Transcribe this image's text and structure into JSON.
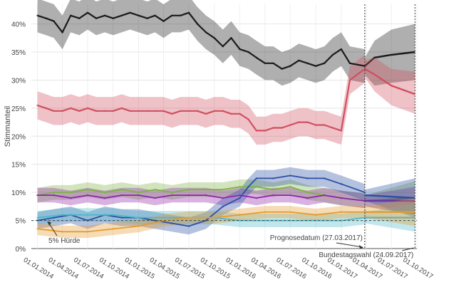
{
  "chart_data": {
    "type": "line",
    "ylabel": "Stimmanteil",
    "xlabel": "",
    "title": "",
    "y_ticks": [
      {
        "value": 0,
        "label": "0%"
      },
      {
        "value": 5,
        "label": "5%"
      },
      {
        "value": 10,
        "label": "10%"
      },
      {
        "value": 15,
        "label": "15%"
      },
      {
        "value": 20,
        "label": "20%"
      },
      {
        "value": 25,
        "label": "25%"
      },
      {
        "value": 30,
        "label": "30%"
      },
      {
        "value": 35,
        "label": "35%"
      },
      {
        "value": 40,
        "label": "40%"
      }
    ],
    "ylim": [
      0,
      43.5
    ],
    "x_ticks": [
      {
        "date": "2014-01-01",
        "label": "01.01.2014"
      },
      {
        "date": "2014-04-01",
        "label": "01.04.2014"
      },
      {
        "date": "2014-07-01",
        "label": "01.07.2014"
      },
      {
        "date": "2014-10-01",
        "label": "01.10.2014"
      },
      {
        "date": "2015-01-01",
        "label": "01.01.2015"
      },
      {
        "date": "2015-04-01",
        "label": "01.04.2015"
      },
      {
        "date": "2015-07-01",
        "label": "01.07.2015"
      },
      {
        "date": "2015-10-01",
        "label": "01.10.2015"
      },
      {
        "date": "2016-01-01",
        "label": "01.01.2016"
      },
      {
        "date": "2016-04-01",
        "label": "01.04.2016"
      },
      {
        "date": "2016-07-01",
        "label": "01.07.2016"
      },
      {
        "date": "2016-10-01",
        "label": "01.10.2016"
      },
      {
        "date": "2017-01-01",
        "label": "01.01.2017"
      },
      {
        "date": "2017-04-01",
        "label": "01.04.2017"
      },
      {
        "date": "2017-07-01",
        "label": "01.07.2017"
      },
      {
        "date": "2017-10-01",
        "label": "01.10.2017"
      }
    ],
    "xlim": [
      "2013-12-10",
      "2017-10-01"
    ],
    "grid": true,
    "series": [
      {
        "color": "#1a1a1a",
        "band": 3.0,
        "x": [
          "2014-01-01",
          "2014-02-01",
          "2014-03-01",
          "2014-04-01",
          "2014-05-01",
          "2014-06-01",
          "2014-07-01",
          "2014-08-01",
          "2014-09-01",
          "2014-10-01",
          "2014-11-01",
          "2014-12-01",
          "2015-01-01",
          "2015-02-01",
          "2015-03-01",
          "2015-04-01",
          "2015-05-01",
          "2015-06-01",
          "2015-07-01",
          "2015-08-01",
          "2015-09-01",
          "2015-10-01",
          "2015-11-01",
          "2015-12-01",
          "2016-01-01",
          "2016-02-01",
          "2016-03-01",
          "2016-04-01",
          "2016-05-01",
          "2016-06-01",
          "2016-07-01",
          "2016-08-01",
          "2016-09-01",
          "2016-10-01",
          "2016-11-01",
          "2016-12-01",
          "2017-01-01",
          "2017-02-01",
          "2017-03-27"
        ],
        "y": [
          41.5,
          41.0,
          40.5,
          38.5,
          41.5,
          41.0,
          42.0,
          41.0,
          41.5,
          41.0,
          41.5,
          42.0,
          41.5,
          41.0,
          41.5,
          40.5,
          41.5,
          41.5,
          42.0,
          40.0,
          38.5,
          37.5,
          36.0,
          37.5,
          35.5,
          35.0,
          34.0,
          33.0,
          33.0,
          32.0,
          32.5,
          33.5,
          33.0,
          32.5,
          33.0,
          34.5,
          35.5,
          33.0,
          32.5
        ]
      },
      {
        "color": "#d05060",
        "band": 2.5,
        "x": [
          "2014-01-01",
          "2014-02-01",
          "2014-03-01",
          "2014-04-01",
          "2014-05-01",
          "2014-06-01",
          "2014-07-01",
          "2014-08-01",
          "2014-09-01",
          "2014-10-01",
          "2014-11-01",
          "2014-12-01",
          "2015-01-01",
          "2015-02-01",
          "2015-03-01",
          "2015-04-01",
          "2015-05-01",
          "2015-06-01",
          "2015-07-01",
          "2015-08-01",
          "2015-09-01",
          "2015-10-01",
          "2015-11-01",
          "2015-12-01",
          "2016-01-01",
          "2016-02-01",
          "2016-03-01",
          "2016-04-01",
          "2016-05-01",
          "2016-06-01",
          "2016-07-01",
          "2016-08-01",
          "2016-09-01",
          "2016-10-01",
          "2016-11-01",
          "2016-12-01",
          "2017-01-01",
          "2017-02-01",
          "2017-03-27"
        ],
        "y": [
          25.5,
          25.0,
          24.5,
          24.5,
          25.0,
          24.5,
          25.0,
          24.5,
          24.5,
          24.5,
          25.0,
          24.5,
          24.5,
          24.5,
          24.5,
          24.5,
          24.0,
          24.5,
          24.5,
          24.5,
          24.0,
          24.5,
          24.5,
          24.0,
          24.0,
          23.0,
          21.0,
          21.0,
          21.5,
          21.5,
          22.0,
          22.5,
          22.5,
          22.0,
          22.0,
          21.5,
          21.0,
          30.0,
          32.0
        ]
      },
      {
        "color": "#7cb342",
        "band": 1.3,
        "x": [
          "2014-01-01",
          "2014-03-01",
          "2014-05-01",
          "2014-07-01",
          "2014-09-01",
          "2014-11-01",
          "2015-01-01",
          "2015-03-01",
          "2015-05-01",
          "2015-07-01",
          "2015-09-01",
          "2015-11-01",
          "2016-01-01",
          "2016-03-01",
          "2016-05-01",
          "2016-07-01",
          "2016-09-01",
          "2016-11-01",
          "2017-01-01",
          "2017-03-27"
        ],
        "y": [
          9.5,
          10.0,
          10.0,
          10.5,
          10.0,
          10.5,
          10.0,
          10.5,
          10.0,
          10.5,
          10.5,
          10.5,
          11.0,
          11.0,
          10.5,
          11.0,
          10.0,
          9.5,
          9.0,
          8.5
        ]
      },
      {
        "color": "#8e24aa",
        "band": 1.3,
        "x": [
          "2014-01-01",
          "2014-03-01",
          "2014-05-01",
          "2014-07-01",
          "2014-09-01",
          "2014-11-01",
          "2015-01-01",
          "2015-03-01",
          "2015-05-01",
          "2015-07-01",
          "2015-09-01",
          "2015-11-01",
          "2016-01-01",
          "2016-03-01",
          "2016-05-01",
          "2016-07-01",
          "2016-09-01",
          "2016-11-01",
          "2017-01-01",
          "2017-03-27"
        ],
        "y": [
          9.5,
          9.5,
          9.0,
          9.5,
          9.0,
          9.5,
          9.5,
          9.0,
          9.5,
          9.5,
          9.5,
          9.0,
          9.5,
          9.0,
          9.5,
          9.5,
          9.0,
          9.5,
          9.0,
          8.5
        ]
      },
      {
        "color": "#2c4fa3",
        "band": 1.5,
        "x": [
          "2014-01-01",
          "2014-03-01",
          "2014-05-01",
          "2014-07-01",
          "2014-09-01",
          "2014-11-01",
          "2015-01-01",
          "2015-03-01",
          "2015-05-01",
          "2015-07-01",
          "2015-09-01",
          "2015-11-01",
          "2016-01-01",
          "2016-02-01",
          "2016-03-01",
          "2016-05-01",
          "2016-07-01",
          "2016-09-01",
          "2016-11-01",
          "2017-01-01",
          "2017-03-27"
        ],
        "y": [
          5.0,
          5.5,
          6.0,
          5.0,
          6.0,
          5.5,
          5.5,
          5.0,
          4.5,
          4.0,
          5.0,
          7.5,
          9.0,
          11.0,
          12.5,
          12.5,
          13.0,
          12.5,
          12.5,
          11.5,
          10.0
        ]
      },
      {
        "color": "#4db6c8",
        "band": 1.2,
        "x": [
          "2014-01-01",
          "2014-04-01",
          "2014-07-01",
          "2014-10-01",
          "2015-01-01",
          "2015-04-01",
          "2015-07-01",
          "2015-10-01",
          "2016-01-01",
          "2016-04-01",
          "2016-07-01",
          "2016-10-01",
          "2017-01-01",
          "2017-03-27"
        ],
        "y": [
          5.5,
          6.0,
          6.0,
          6.0,
          5.5,
          5.5,
          5.5,
          5.5,
          5.0,
          5.0,
          5.0,
          5.0,
          5.0,
          5.5
        ]
      },
      {
        "color": "#e69b2e",
        "band": 1.1,
        "x": [
          "2014-01-01",
          "2014-04-01",
          "2014-07-01",
          "2014-10-01",
          "2015-01-01",
          "2015-04-01",
          "2015-07-01",
          "2015-10-01",
          "2016-01-01",
          "2016-04-01",
          "2016-07-01",
          "2016-10-01",
          "2017-01-01",
          "2017-03-27"
        ],
        "y": [
          3.5,
          3.0,
          3.0,
          3.5,
          4.0,
          5.0,
          5.5,
          5.5,
          6.0,
          6.5,
          6.5,
          6.0,
          6.5,
          6.5
        ]
      }
    ],
    "forecast": [
      {
        "color": "#1a1a1a",
        "x": [
          "2017-03-27",
          "2017-05-01",
          "2017-07-01",
          "2017-09-24"
        ],
        "y": [
          32.5,
          34.0,
          34.5,
          35.0
        ],
        "lower": [
          31.0,
          29.0,
          29.5,
          30.0
        ],
        "upper": [
          34.0,
          37.0,
          39.0,
          40.0
        ]
      },
      {
        "color": "#d05060",
        "x": [
          "2017-03-27",
          "2017-05-01",
          "2017-07-01",
          "2017-09-24"
        ],
        "y": [
          32.0,
          31.0,
          29.0,
          27.5
        ],
        "lower": [
          30.5,
          28.0,
          25.5,
          24.0
        ],
        "upper": [
          33.5,
          34.0,
          32.0,
          31.5
        ]
      },
      {
        "color": "#7cb342",
        "x": [
          "2017-03-27",
          "2017-09-24"
        ],
        "y": [
          8.5,
          9.0
        ],
        "lower": [
          7.5,
          6.0
        ],
        "upper": [
          9.5,
          12.0
        ]
      },
      {
        "color": "#8e24aa",
        "x": [
          "2017-03-27",
          "2017-09-24"
        ],
        "y": [
          8.5,
          8.5
        ],
        "lower": [
          7.5,
          6.0
        ],
        "upper": [
          9.5,
          11.0
        ]
      },
      {
        "color": "#2c4fa3",
        "x": [
          "2017-03-27",
          "2017-09-24"
        ],
        "y": [
          9.5,
          9.0
        ],
        "lower": [
          8.5,
          5.5
        ],
        "upper": [
          10.5,
          12.5
        ]
      },
      {
        "color": "#4db6c8",
        "x": [
          "2017-03-27",
          "2017-09-24"
        ],
        "y": [
          5.5,
          5.5
        ],
        "lower": [
          4.5,
          3.0
        ],
        "upper": [
          6.5,
          8.0
        ]
      },
      {
        "color": "#e69b2e",
        "x": [
          "2017-03-27",
          "2017-09-24"
        ],
        "y": [
          6.5,
          6.5
        ],
        "lower": [
          5.5,
          4.0
        ],
        "upper": [
          7.5,
          9.0
        ]
      }
    ],
    "threshold": {
      "value": 5,
      "label": "5% Hürde"
    },
    "annotations": [
      {
        "date": "2017-03-27",
        "label": "Prognosedatum (27.03.2017)"
      },
      {
        "date": "2017-09-24",
        "label": "Bundestagswahl (24.09.2017)"
      }
    ]
  }
}
